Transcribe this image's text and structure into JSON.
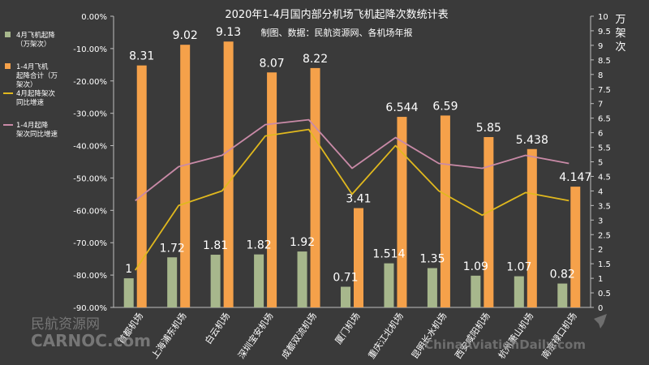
{
  "chart_data": {
    "type": "bar",
    "title": "2020年1-4月国内部分机场飞机起降次数统计表",
    "subtitle": "制图、数据：民航资源网、各机场年报",
    "right_axis_label": "万架次",
    "categories": [
      "首都机场",
      "上海浦东机场",
      "白云机场",
      "深圳宝安机场",
      "成都双流机场",
      "厦门机场",
      "重庆江北机场",
      "昆明长水机场",
      "西安咸阳机场",
      "杭州萧山机场",
      "南京禄口机场"
    ],
    "series": [
      {
        "name": "4月飞机起降（万架次）",
        "kind": "bar",
        "axis": "right",
        "color": "#a7b78c",
        "values": [
          1,
          1.72,
          1.81,
          1.82,
          1.92,
          0.71,
          1.514,
          1.35,
          1.09,
          1.07,
          0.82
        ],
        "labels": [
          "1",
          "1.72",
          "1.81",
          "1.82",
          "1.92",
          "0.71",
          "1.514",
          "1.35",
          "1.09",
          "1.07",
          "0.82"
        ]
      },
      {
        "name": "1-4月飞机起降合计（万架次）",
        "kind": "bar",
        "axis": "right",
        "color": "#f5a14a",
        "values": [
          8.31,
          9.02,
          9.13,
          8.07,
          8.22,
          3.41,
          6.544,
          6.59,
          5.85,
          5.438,
          4.147
        ],
        "labels": [
          "8.31",
          "9.02",
          "9.13",
          "8.07",
          "8.22",
          "3.41",
          "6.544",
          "6.59",
          "5.85",
          "5.438",
          "4.147"
        ]
      },
      {
        "name": "4月起降架次同比增速",
        "kind": "line",
        "axis": "left",
        "color": "#e0b81e",
        "values": [
          -78.5,
          -58.5,
          -54.0,
          -37.0,
          -35.0,
          -55.0,
          -40.0,
          -54.0,
          -61.5,
          -54.5,
          -57.0
        ]
      },
      {
        "name": "1-4月起降架次同比增速",
        "kind": "line",
        "axis": "left",
        "color": "#c98aa7",
        "values": [
          -57.0,
          -46.5,
          -43.0,
          -33.5,
          -32.0,
          -47.0,
          -37.5,
          -45.5,
          -47.0,
          -43.0,
          -45.5
        ]
      }
    ],
    "left_axis": {
      "min": -90,
      "max": 0,
      "step": 10,
      "tick_labels": [
        "0.00%",
        "-10.00%",
        "-20.00%",
        "-30.00%",
        "-40.00%",
        "-50.00%",
        "-60.00%",
        "-70.00%",
        "-80.00%",
        "-90.00%"
      ]
    },
    "right_axis": {
      "min": 0,
      "max": 10,
      "step": 0.5,
      "tick_labels": [
        "0",
        "0.5",
        "1",
        "1.5",
        "2",
        "2.5",
        "3",
        "3.5",
        "4",
        "4.5",
        "5",
        "5.5",
        "6",
        "6.5",
        "7",
        "7.5",
        "8",
        "8.5",
        "9",
        "9.5",
        "10"
      ]
    },
    "legend_placement": "left",
    "grid": false
  },
  "watermark": {
    "left_cn": "民航资源网",
    "left_en": "CARNOC.com",
    "right_en": "ChinaAviationDaily.com"
  },
  "colors": {
    "background": "#3a3a3a",
    "text": "#ffffff",
    "axis": "#bfbfbf"
  }
}
